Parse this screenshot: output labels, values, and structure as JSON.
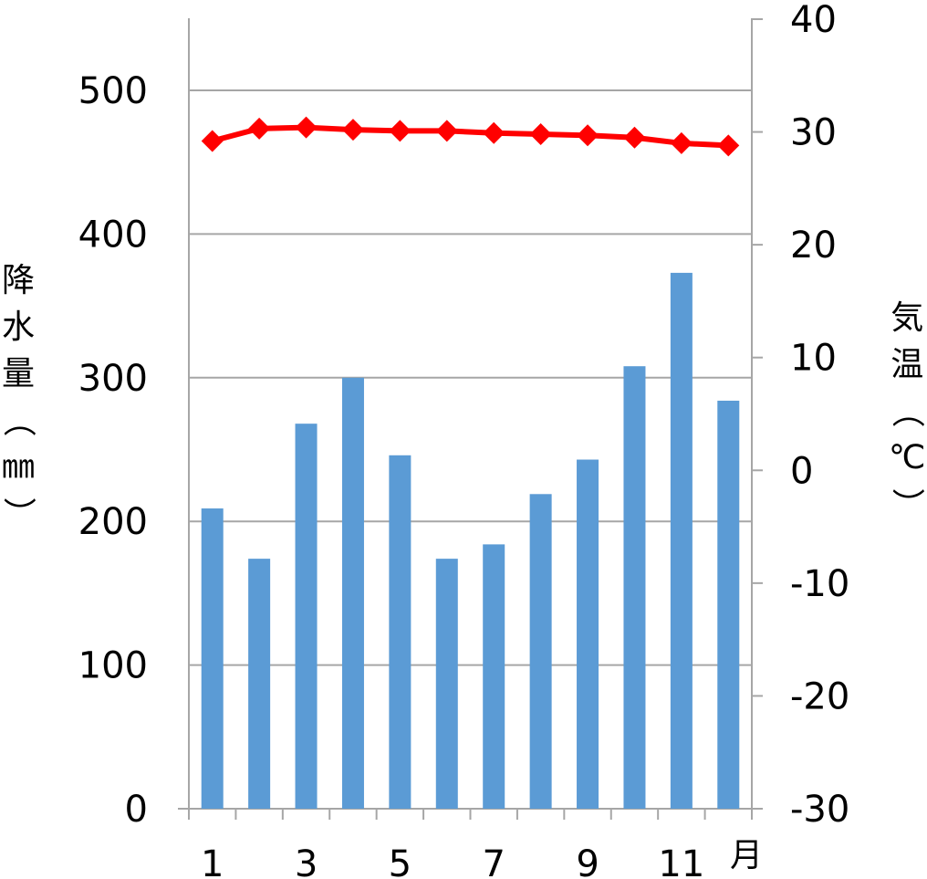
{
  "chart_data": {
    "type": "bar+line",
    "categories": [
      "1",
      "2",
      "3",
      "4",
      "5",
      "6",
      "7",
      "8",
      "9",
      "10",
      "11",
      "12"
    ],
    "x_tick_labels": [
      "1",
      "3",
      "5",
      "7",
      "9",
      "11"
    ],
    "xlabel": "月",
    "series": [
      {
        "type": "bar",
        "axis": "left",
        "values": [
          209,
          174,
          268,
          300,
          246,
          174,
          184,
          219,
          243,
          308,
          373,
          284
        ],
        "color": "#5b9bd5"
      },
      {
        "type": "line",
        "axis": "right",
        "marker": "diamond",
        "values": [
          29.2,
          30.3,
          30.4,
          30.2,
          30.1,
          30.1,
          29.9,
          29.8,
          29.7,
          29.5,
          29.0,
          28.8
        ],
        "color": "#ff0000"
      }
    ],
    "left_axis": {
      "label": [
        "降",
        "水",
        "量",
        "（",
        "㎜",
        "）"
      ],
      "ylim": [
        0,
        550
      ],
      "ticks": [
        0,
        100,
        200,
        300,
        400,
        500
      ]
    },
    "right_axis": {
      "label": [
        "気",
        "温",
        "（",
        "℃",
        "）"
      ],
      "ylim": [
        -30,
        40
      ],
      "ticks": [
        -30,
        -20,
        -10,
        0,
        10,
        20,
        30,
        40
      ]
    },
    "grid": true,
    "gridline_color": "#a6a6a6"
  }
}
